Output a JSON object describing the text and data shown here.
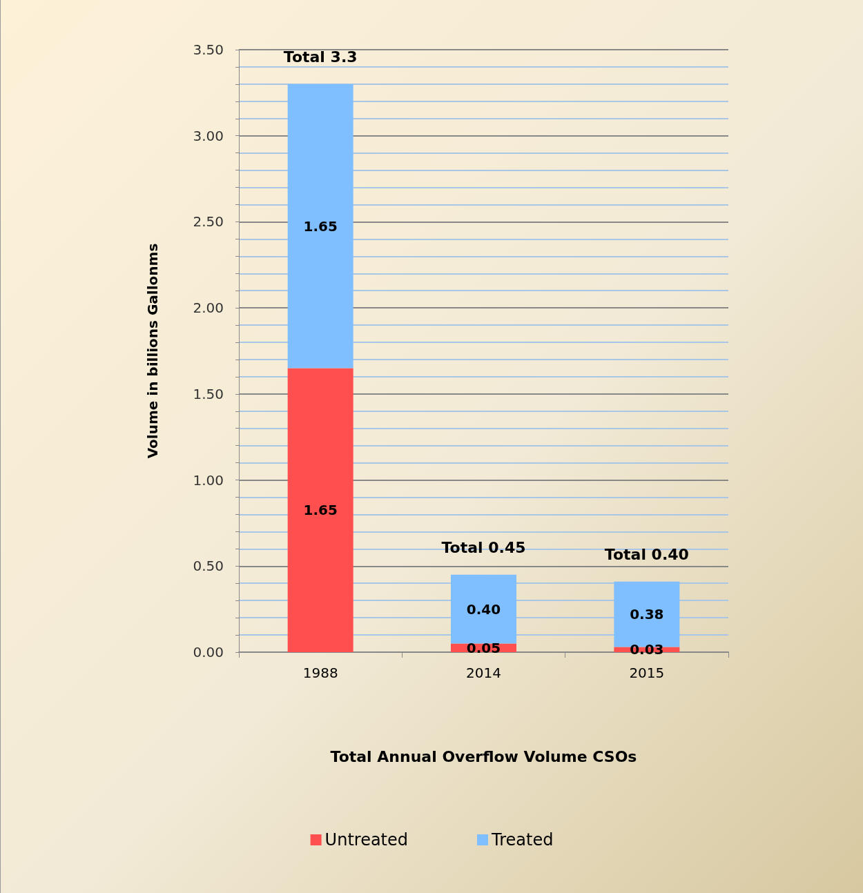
{
  "chart_data": {
    "type": "bar",
    "stacked": true,
    "xlabel": "Total Annual Overflow Volume CSOs",
    "ylabel": "Volume in billions Gallonms",
    "categories": [
      "1988",
      "2014",
      "2015"
    ],
    "series": [
      {
        "name": "Untreated",
        "color": "#ff4f4f",
        "values": [
          1.65,
          0.05,
          0.03
        ],
        "value_labels": [
          "1.65",
          "0.05",
          "0.03"
        ]
      },
      {
        "name": "Treated",
        "color": "#7fbfff",
        "values": [
          1.65,
          0.4,
          0.38
        ],
        "value_labels": [
          "1.65",
          "0.40",
          "0.38"
        ]
      }
    ],
    "totals": [
      "Total 3.3",
      "Total 0.45",
      "Total 0.40"
    ],
    "ylim": [
      0,
      3.5
    ],
    "yticks": [
      {
        "value": 0,
        "label": "0.00"
      },
      {
        "value": 0.1,
        "label": null
      },
      {
        "value": 0.2,
        "label": null
      },
      {
        "value": 0.3,
        "label": null
      },
      {
        "value": 0.4,
        "label": null
      },
      {
        "value": 0.5,
        "label": "0.50"
      },
      {
        "value": 0.6,
        "label": null
      },
      {
        "value": 0.7,
        "label": null
      },
      {
        "value": 0.8,
        "label": null
      },
      {
        "value": 0.9,
        "label": null
      },
      {
        "value": 1,
        "label": "1.00"
      },
      {
        "value": 1.1,
        "label": null
      },
      {
        "value": 1.2,
        "label": null
      },
      {
        "value": 1.3,
        "label": null
      },
      {
        "value": 1.4,
        "label": null
      },
      {
        "value": 1.5,
        "label": "1.50"
      },
      {
        "value": 1.6,
        "label": null
      },
      {
        "value": 1.7,
        "label": null
      },
      {
        "value": 1.8,
        "label": null
      },
      {
        "value": 1.9,
        "label": null
      },
      {
        "value": 2,
        "label": "2.00"
      },
      {
        "value": 2.1,
        "label": null
      },
      {
        "value": 2.2,
        "label": null
      },
      {
        "value": 2.3,
        "label": null
      },
      {
        "value": 2.4,
        "label": null
      },
      {
        "value": 2.5,
        "label": "2.50"
      },
      {
        "value": 2.6,
        "label": null
      },
      {
        "value": 2.7,
        "label": null
      },
      {
        "value": 2.8,
        "label": null
      },
      {
        "value": 2.9,
        "label": null
      },
      {
        "value": 3,
        "label": "3.00"
      },
      {
        "value": 3.1,
        "label": null
      },
      {
        "value": 3.2,
        "label": null
      },
      {
        "value": 3.3,
        "label": null
      },
      {
        "value": 3.4,
        "label": null
      },
      {
        "value": 3.5,
        "label": "3.50"
      }
    ],
    "grid": "y",
    "legend": "bottom"
  }
}
